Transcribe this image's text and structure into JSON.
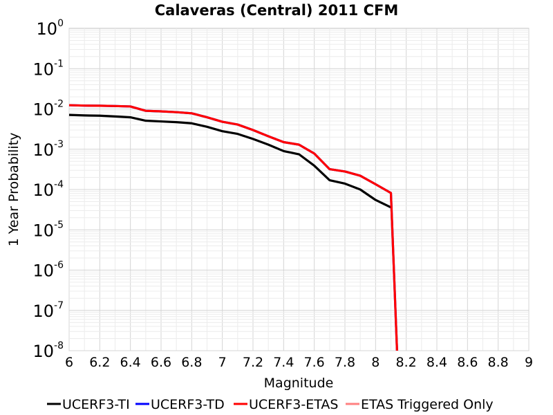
{
  "chart_data": {
    "type": "line",
    "title": "Calaveras (Central) 2011 CFM",
    "xlabel": "Magnitude",
    "ylabel": "1 Year Probability",
    "xlim": [
      6,
      9
    ],
    "ylim": [
      1e-08,
      1
    ],
    "yscale": "log",
    "grid": true,
    "legend_position": "bottom",
    "x_ticks": [
      "6",
      "6.2",
      "6.4",
      "6.6",
      "6.8",
      "7",
      "7.2",
      "7.4",
      "7.6",
      "7.8",
      "8",
      "8.2",
      "8.4",
      "8.6",
      "8.8",
      "9"
    ],
    "y_ticks": [
      {
        "base": "10",
        "exp": "0"
      },
      {
        "base": "10",
        "exp": "-1"
      },
      {
        "base": "10",
        "exp": "-2"
      },
      {
        "base": "10",
        "exp": "-3"
      },
      {
        "base": "10",
        "exp": "-4"
      },
      {
        "base": "10",
        "exp": "-5"
      },
      {
        "base": "10",
        "exp": "-6"
      },
      {
        "base": "10",
        "exp": "-7"
      },
      {
        "base": "10",
        "exp": "-8"
      }
    ],
    "series": [
      {
        "name": "UCERF3-TI",
        "color": "#000000",
        "x": [
          6.0,
          6.1,
          6.2,
          6.3,
          6.4,
          6.5,
          6.6,
          6.7,
          6.8,
          6.9,
          7.0,
          7.1,
          7.2,
          7.3,
          7.4,
          7.5,
          7.6,
          7.7,
          7.8,
          7.9,
          8.0,
          8.1
        ],
        "y": [
          0.0071,
          0.0069,
          0.0068,
          0.0065,
          0.0062,
          0.0051,
          0.0049,
          0.0047,
          0.0044,
          0.0036,
          0.0028,
          0.0024,
          0.0018,
          0.0013,
          0.0009,
          0.00075,
          0.00039,
          0.00017,
          0.00014,
          0.0001,
          5.5e-05,
          3.6e-05
        ]
      },
      {
        "name": "UCERF3-TD",
        "color": "#0000ff",
        "x": [
          6.0,
          6.1,
          6.2,
          6.3,
          6.4,
          6.5,
          6.6,
          6.7,
          6.8,
          6.9,
          7.0,
          7.1,
          7.2,
          7.3,
          7.4,
          7.5,
          7.6,
          7.7,
          7.8,
          7.9,
          8.0,
          8.1,
          8.14
        ],
        "y": [
          0.0124,
          0.0121,
          0.012,
          0.0118,
          0.0115,
          0.009,
          0.0087,
          0.0083,
          0.0078,
          0.0062,
          0.0048,
          0.0041,
          0.003,
          0.0021,
          0.0015,
          0.0013,
          0.00078,
          0.00032,
          0.00028,
          0.00022,
          0.000135,
          8.2e-05,
          1e-08
        ]
      },
      {
        "name": "UCERF3-ETAS",
        "color": "#ff0000",
        "x": [
          6.0,
          6.1,
          6.2,
          6.3,
          6.4,
          6.5,
          6.6,
          6.7,
          6.8,
          6.9,
          7.0,
          7.1,
          7.2,
          7.3,
          7.4,
          7.5,
          7.6,
          7.7,
          7.8,
          7.9,
          8.0,
          8.1,
          8.14
        ],
        "y": [
          0.0124,
          0.0121,
          0.012,
          0.0118,
          0.0115,
          0.009,
          0.0087,
          0.0083,
          0.0078,
          0.0062,
          0.0048,
          0.0041,
          0.003,
          0.0021,
          0.0015,
          0.0013,
          0.00078,
          0.00032,
          0.00028,
          0.00022,
          0.000135,
          8.2e-05,
          1e-08
        ]
      },
      {
        "name": "ETAS Triggered Only",
        "color": "#ff8080",
        "x": [],
        "y": []
      }
    ]
  }
}
